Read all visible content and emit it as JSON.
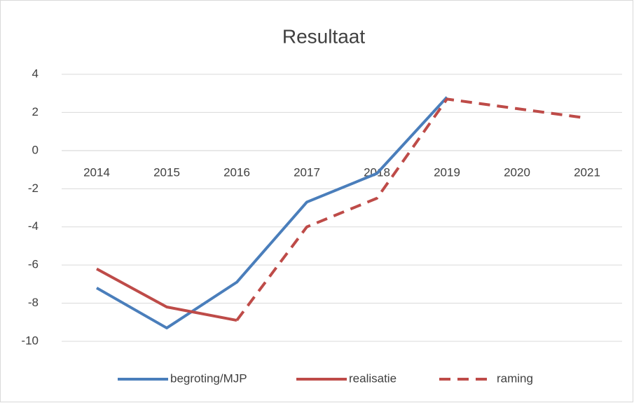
{
  "chart_data": {
    "type": "line",
    "title": "Resultaat",
    "categories": [
      "2014",
      "2015",
      "2016",
      "2017",
      "2018",
      "2019",
      "2020",
      "2021"
    ],
    "series": [
      {
        "name": "begroting/MJP",
        "color": "#4a7ebb",
        "dashed": false,
        "values": [
          -7.2,
          -9.3,
          -6.9,
          -2.7,
          -1.2,
          2.8,
          null,
          null
        ]
      },
      {
        "name": "realisatie",
        "color": "#be4b48",
        "dashed": false,
        "values": [
          -6.2,
          -8.2,
          -8.9,
          null,
          null,
          null,
          null,
          null
        ]
      },
      {
        "name": "raming",
        "color": "#be4b48",
        "dashed": true,
        "values": [
          null,
          null,
          -8.9,
          -4.0,
          -2.5,
          2.7,
          2.2,
          1.7
        ]
      }
    ],
    "ylim": [
      -10,
      4
    ],
    "yticks": [
      -10,
      -8,
      -6,
      -4,
      -2,
      0,
      2,
      4
    ],
    "grid": true,
    "legend": "bottom"
  }
}
